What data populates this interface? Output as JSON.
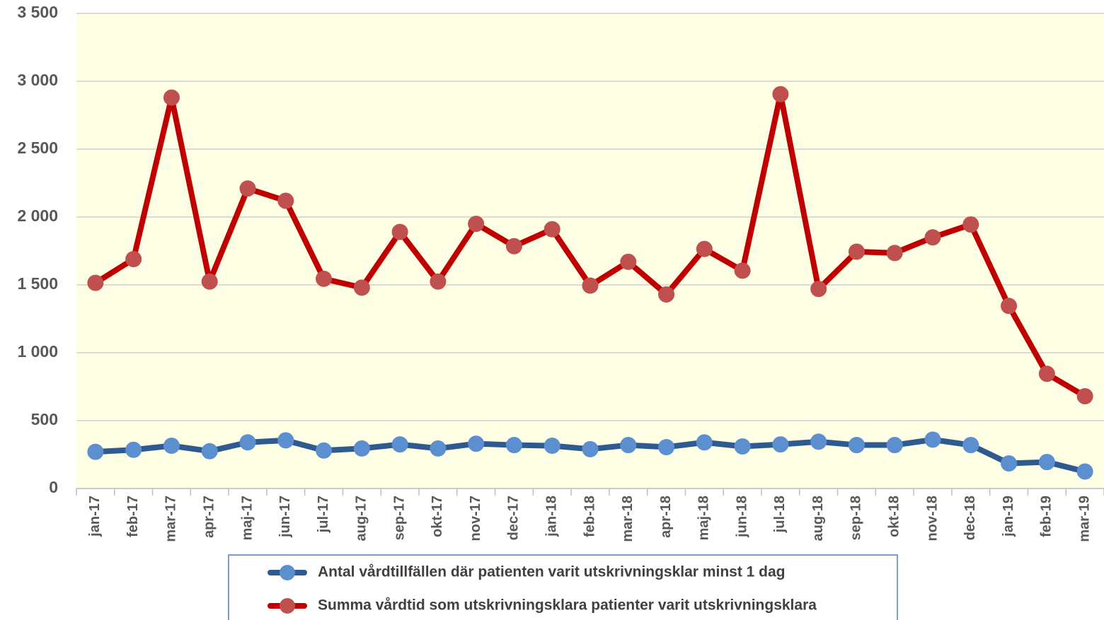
{
  "chart_data": {
    "type": "line",
    "categories": [
      "jan-17",
      "feb-17",
      "mar-17",
      "apr-17",
      "maj-17",
      "jun-17",
      "jul-17",
      "aug-17",
      "sep-17",
      "okt-17",
      "nov-17",
      "dec-17",
      "jan-18",
      "feb-18",
      "mar-18",
      "apr-18",
      "maj-18",
      "jun-18",
      "jul-18",
      "aug-18",
      "sep-18",
      "okt-18",
      "nov-18",
      "dec-18",
      "jan-19",
      "feb-19",
      "mar-19"
    ],
    "series": [
      {
        "name": "Antal vårdtillfällen där patienten varit utskrivningsklar minst 1 dag",
        "color": "#2f5a8f",
        "marker_color": "#5b8fd0",
        "values": [
          270,
          285,
          315,
          275,
          340,
          355,
          280,
          295,
          325,
          295,
          330,
          320,
          315,
          290,
          320,
          305,
          340,
          310,
          325,
          345,
          320,
          320,
          360,
          320,
          185,
          195,
          125
        ]
      },
      {
        "name": "Summa vårdtid som utskrivningsklara patienter varit utskrivningsklara",
        "color": "#c00000",
        "marker_color": "#c0504d",
        "values": [
          1515,
          1690,
          2880,
          1525,
          2210,
          2120,
          1545,
          1480,
          1890,
          1525,
          1950,
          1785,
          1910,
          1495,
          1670,
          1430,
          1765,
          1605,
          2905,
          1470,
          1745,
          1735,
          1850,
          1945,
          1345,
          845,
          680
        ]
      }
    ],
    "ylim": [
      0,
      3500
    ],
    "yticks": [
      0,
      500,
      {
        "value": 1000,
        "label": "1 000"
      },
      {
        "value": 1500,
        "label": "1 500"
      },
      {
        "value": 2000,
        "label": "2 000"
      },
      {
        "value": 2500,
        "label": "2 500"
      },
      {
        "value": 3000,
        "label": "3 000"
      },
      {
        "value": 3500,
        "label": "3 500"
      }
    ],
    "grid": true,
    "background": "#ffffe6",
    "legend": "bottom"
  }
}
